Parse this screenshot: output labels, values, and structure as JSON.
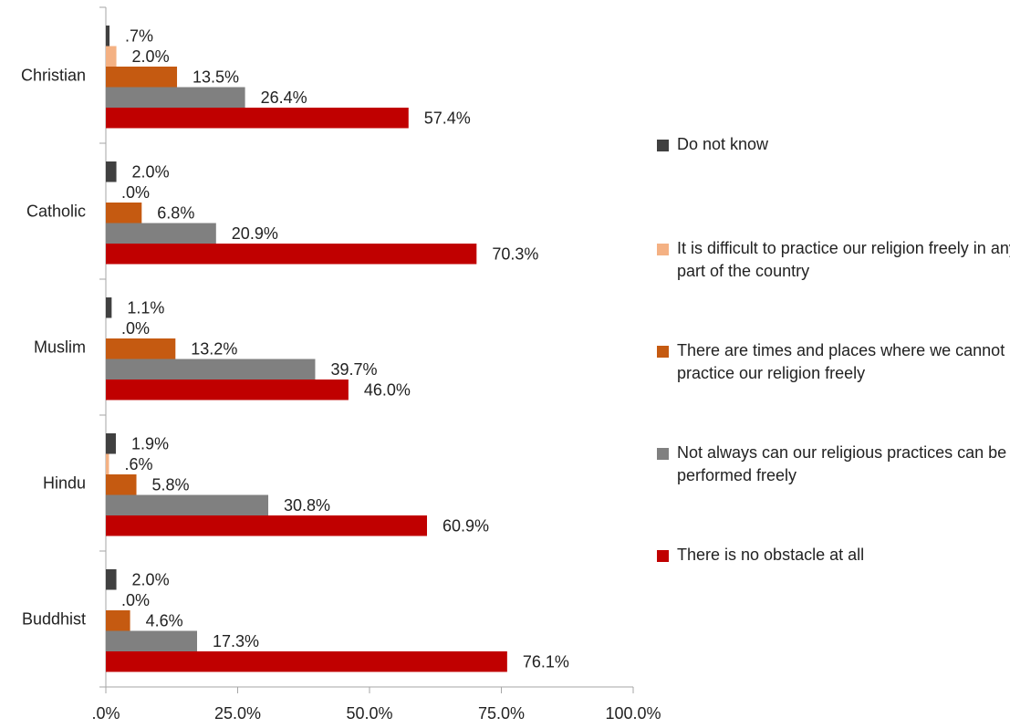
{
  "chart_data": {
    "type": "bar",
    "orientation": "horizontal",
    "categories": [
      "Christian",
      "Catholic",
      "Muslim",
      "Hindu",
      "Buddhist"
    ],
    "series": [
      {
        "name": "Do not know",
        "color": "#404040",
        "values": [
          0.7,
          2.0,
          1.1,
          1.9,
          2.0
        ],
        "labels": [
          ".7%",
          "2.0%",
          "1.1%",
          "1.9%",
          "2.0%"
        ]
      },
      {
        "name": "It is difficult to practice our religion freely in any part of the country",
        "color": "#f4b183",
        "values": [
          2.0,
          0.0,
          0.0,
          0.6,
          0.0
        ],
        "labels": [
          "2.0%",
          ".0%",
          ".0%",
          ".6%",
          ".0%"
        ]
      },
      {
        "name": "There are times and places where we cannot practice our religion freely",
        "color": "#c55a11",
        "values": [
          13.5,
          6.8,
          13.2,
          5.8,
          4.6
        ],
        "labels": [
          "13.5%",
          "6.8%",
          "13.2%",
          "5.8%",
          "4.6%"
        ]
      },
      {
        "name": "Not always can our religious practices can be performed freely",
        "color": "#808080",
        "values": [
          26.4,
          20.9,
          39.7,
          30.8,
          17.3
        ],
        "labels": [
          "26.4%",
          "20.9%",
          "39.7%",
          "30.8%",
          "17.3%"
        ]
      },
      {
        "name": "There is no obstacle at all",
        "color": "#c00000",
        "values": [
          57.4,
          70.3,
          46.0,
          60.9,
          76.1
        ],
        "labels": [
          "57.4%",
          "70.3%",
          "46.0%",
          "60.9%",
          "76.1%"
        ]
      }
    ],
    "xlim": [
      0,
      100
    ],
    "xticks": [
      0,
      25,
      50,
      75,
      100
    ],
    "xtick_labels": [
      ".0%",
      "25.0%",
      "50.0%",
      "75.0%",
      "100.0%"
    ],
    "grid": false,
    "legend_position": "right"
  }
}
